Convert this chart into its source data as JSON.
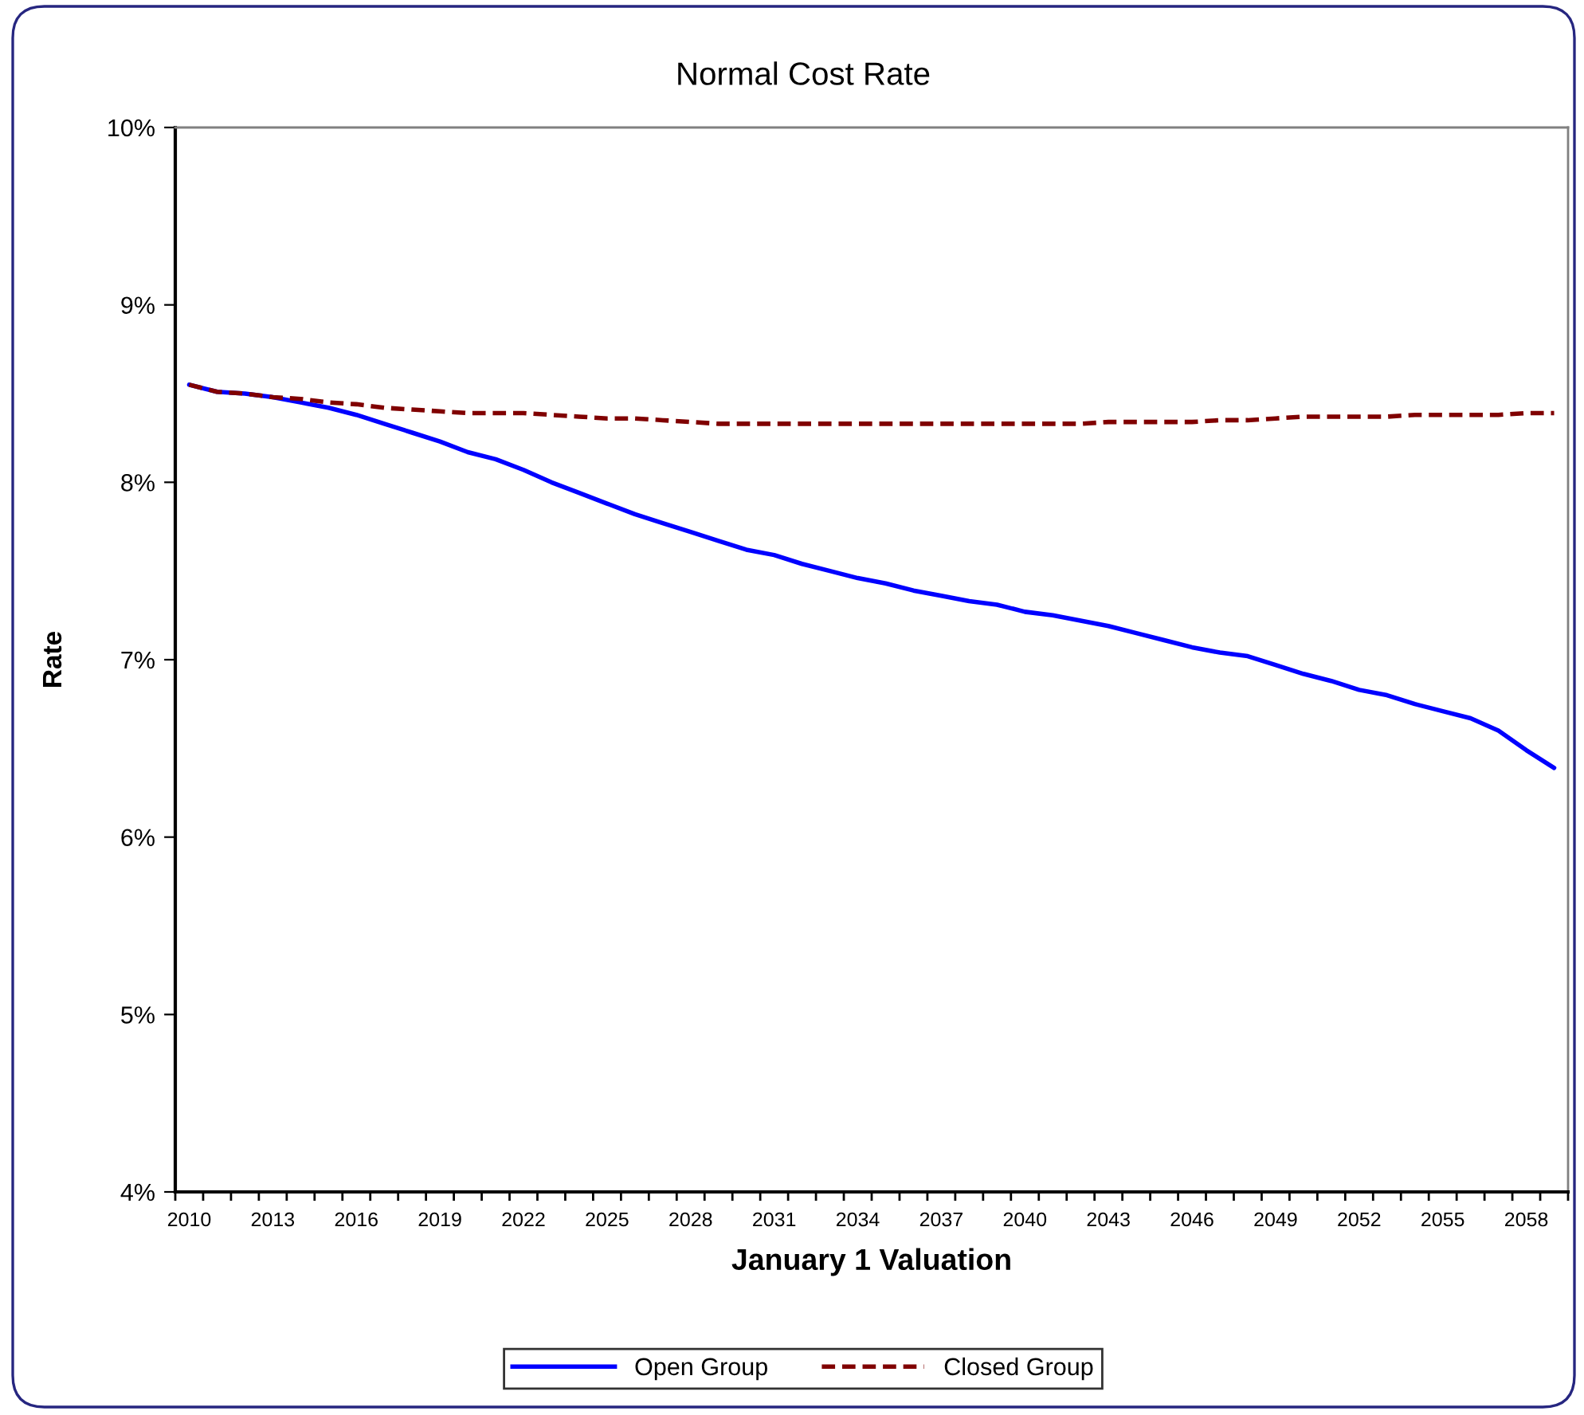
{
  "chart_data": {
    "type": "line",
    "title": "Normal Cost Rate",
    "xlabel": "January 1 Valuation",
    "ylabel": "Rate",
    "categories": [
      "2010",
      null,
      null,
      "2013",
      null,
      null,
      "2016",
      null,
      null,
      "2019",
      null,
      null,
      "2022",
      null,
      null,
      "2025",
      null,
      null,
      "2028",
      null,
      null,
      "2031",
      null,
      null,
      "2034",
      null,
      null,
      "2037",
      null,
      null,
      "2040",
      null,
      null,
      "2043",
      null,
      null,
      "2046",
      null,
      null,
      "2049",
      null,
      null,
      "2052",
      null,
      null,
      "2055",
      null,
      null,
      "2058",
      null
    ],
    "series": [
      {
        "name": "Open Group",
        "color": "#0000ff",
        "line_style": "solid",
        "values": [
          8.55,
          8.51,
          8.5,
          8.48,
          8.45,
          8.42,
          8.38,
          8.33,
          8.28,
          8.23,
          8.17,
          8.13,
          8.07,
          8.0,
          7.94,
          7.88,
          7.82,
          7.77,
          7.72,
          7.67,
          7.62,
          7.59,
          7.54,
          7.5,
          7.46,
          7.43,
          7.39,
          7.36,
          7.33,
          7.31,
          7.27,
          7.25,
          7.22,
          7.19,
          7.15,
          7.11,
          7.07,
          7.04,
          7.02,
          6.97,
          6.92,
          6.88,
          6.83,
          6.8,
          6.75,
          6.71,
          6.67,
          6.6,
          6.49,
          6.39
        ]
      },
      {
        "name": "Closed Group",
        "color": "#800000",
        "line_style": "dashed",
        "values": [
          8.55,
          8.51,
          8.5,
          8.48,
          8.47,
          8.45,
          8.44,
          8.42,
          8.41,
          8.4,
          8.39,
          8.39,
          8.39,
          8.38,
          8.37,
          8.36,
          8.36,
          8.35,
          8.34,
          8.33,
          8.33,
          8.33,
          8.33,
          8.33,
          8.33,
          8.33,
          8.33,
          8.33,
          8.33,
          8.33,
          8.33,
          8.33,
          8.33,
          8.34,
          8.34,
          8.34,
          8.34,
          8.35,
          8.35,
          8.36,
          8.37,
          8.37,
          8.37,
          8.37,
          8.38,
          8.38,
          8.38,
          8.38,
          8.39,
          8.39
        ]
      }
    ],
    "ylim": [
      4,
      10
    ],
    "yticks": [
      {
        "value": 4,
        "label": "4%"
      },
      {
        "value": 5,
        "label": "5%"
      },
      {
        "value": 6,
        "label": "6%"
      },
      {
        "value": 7,
        "label": "7%"
      },
      {
        "value": 8,
        "label": "8%"
      },
      {
        "value": 9,
        "label": "9%"
      },
      {
        "value": 10,
        "label": "10%"
      }
    ],
    "legend": "bottom",
    "grid": false
  }
}
